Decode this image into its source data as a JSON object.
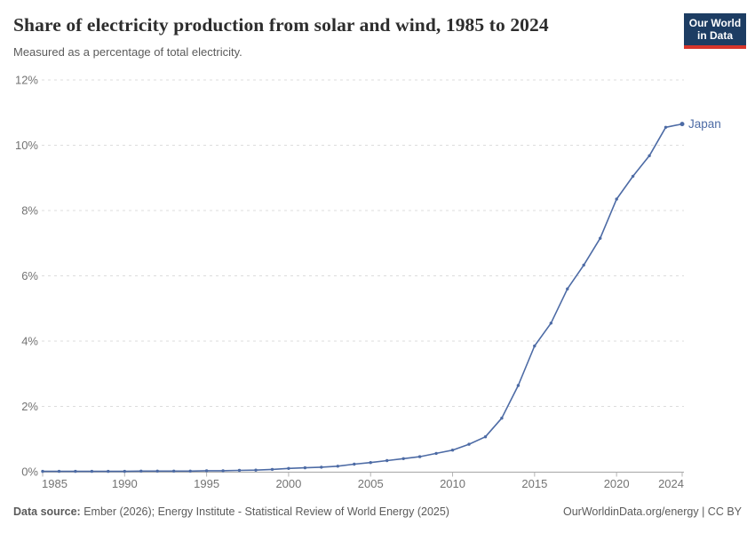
{
  "header": {
    "title": "Share of electricity production from solar and wind, 1985 to 2024",
    "subtitle": "Measured as a percentage of total electricity.",
    "logo": {
      "line1": "Our World",
      "line2": "in Data"
    }
  },
  "footer": {
    "source_label": "Data source:",
    "source_text": " Ember (2026); Energy Institute - Statistical Review of World Energy (2025)",
    "right_text": "OurWorldinData.org/energy | CC BY"
  },
  "chart_data": {
    "type": "line",
    "title": "Share of electricity production from solar and wind, 1985 to 2024",
    "subtitle": "Measured as a percentage of total electricity.",
    "xlabel": "",
    "ylabel": "",
    "x": [
      1985,
      1986,
      1987,
      1988,
      1989,
      1990,
      1991,
      1992,
      1993,
      1994,
      1995,
      1996,
      1997,
      1998,
      1999,
      2000,
      2001,
      2002,
      2003,
      2004,
      2005,
      2006,
      2007,
      2008,
      2009,
      2010,
      2011,
      2012,
      2013,
      2014,
      2015,
      2016,
      2017,
      2018,
      2019,
      2020,
      2021,
      2022,
      2023,
      2024
    ],
    "series": [
      {
        "name": "Japan",
        "values": [
          0.01,
          0.01,
          0.01,
          0.01,
          0.01,
          0.01,
          0.02,
          0.02,
          0.02,
          0.02,
          0.03,
          0.03,
          0.04,
          0.05,
          0.07,
          0.1,
          0.12,
          0.14,
          0.17,
          0.23,
          0.28,
          0.34,
          0.4,
          0.46,
          0.56,
          0.66,
          0.84,
          1.07,
          1.64,
          2.64,
          3.85,
          4.55,
          5.6,
          6.33,
          7.15,
          8.35,
          9.05,
          9.68,
          10.55,
          10.65
        ]
      }
    ],
    "xlim": [
      1985,
      2024
    ],
    "ylim": [
      0,
      12
    ],
    "yticks": [
      0,
      2,
      4,
      6,
      8,
      10,
      12
    ],
    "ytick_suffix": "%",
    "xticks": [
      1985,
      1990,
      1995,
      2000,
      2005,
      2010,
      2015,
      2020,
      2024
    ],
    "grid": "horizontal-dashed",
    "legend_position": "end-of-line-label",
    "colors": {
      "line": "#4d6ba5",
      "grid": "#dddddd",
      "axis": "#a5a5a5",
      "tick": "#b3b3b3",
      "tick_label": "#737373"
    }
  }
}
